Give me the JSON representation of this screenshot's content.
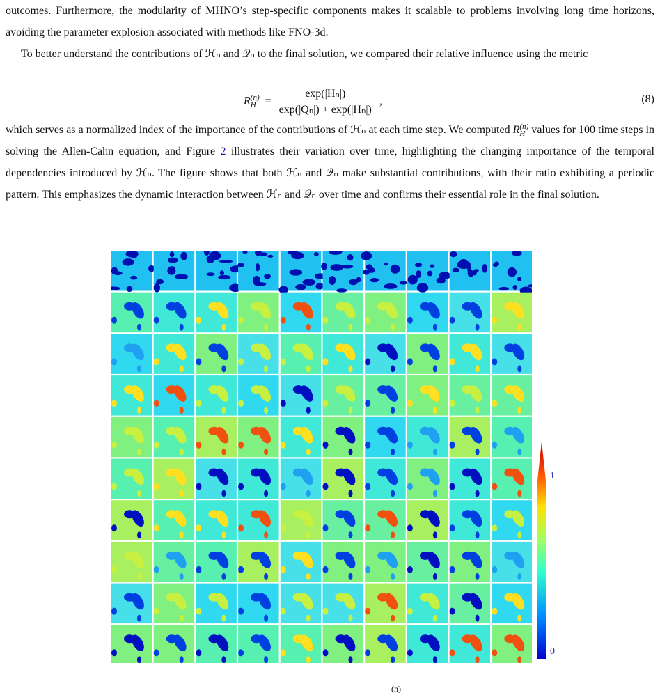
{
  "paragraph_1": "outcomes. Furthermore, the modularity of MHNO’s step-specific components makes it scalable to problems involving long time horizons, avoiding the parameter explosion associated with methods like FNO-3d.",
  "paragraph_2": "To better understand the contributions of ℋₙ and 𝒬ₙ to the final solution, we compared their relative influence using the metric",
  "equation": {
    "lhs": "R",
    "lhs_sub": "H",
    "lhs_sup": "(n)",
    "equals": "=",
    "numerator": "exp(|Hₙ|)",
    "denominator": "exp(|Qₙ|) + exp(|Hₙ|)",
    "trailing": ",",
    "number": "(8)"
  },
  "paragraph_3": {
    "start": "which serves as a normalized index of the importance of the contributions of ℋₙ at each time step. We computed",
    "symbol": "R",
    "symbol_sub": "H",
    "symbol_sup": "(n)",
    "middle": "values for 100 time steps in solving the Allen-Cahn equation, and Figure",
    "figure_ref": "2",
    "end": "illustrates their variation over time, highlighting the changing importance of the temporal dependencies introduced by ℋₙ. The figure shows that both ℋₙ and 𝒬ₙ make substantial contributions, with their ratio exhibiting a periodic pattern. This emphasizes the dynamic interaction between ℋₙ and 𝒬ₙ over time and confirms their essential role in the final solution."
  },
  "figure": {
    "colorbar_max": "1",
    "colorbar_min": "0"
  },
  "caption_fragment": "(n)"
}
